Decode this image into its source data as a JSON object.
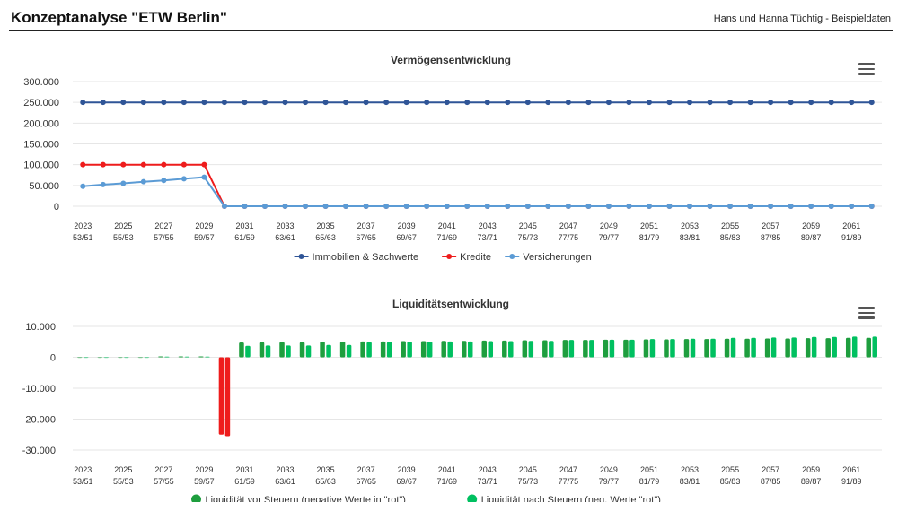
{
  "header": {
    "title": "Konzeptanalyse \"ETW Berlin\"",
    "subtitle": "Hans und Hanna Tüchtig - Beispieldaten"
  },
  "icons": {
    "menu": "hamburger-menu-icon"
  },
  "chart_data": [
    {
      "type": "line",
      "title": "Vermögensentwicklung",
      "x_tick_labels": [
        [
          "2023",
          "53/51"
        ],
        [
          "2025",
          "55/53"
        ],
        [
          "2027",
          "57/55"
        ],
        [
          "2029",
          "59/57"
        ],
        [
          "2031",
          "61/59"
        ],
        [
          "2033",
          "63/61"
        ],
        [
          "2035",
          "65/63"
        ],
        [
          "2037",
          "67/65"
        ],
        [
          "2039",
          "69/67"
        ],
        [
          "2041",
          "71/69"
        ],
        [
          "2043",
          "73/71"
        ],
        [
          "2045",
          "75/73"
        ],
        [
          "2047",
          "77/75"
        ],
        [
          "2049",
          "79/77"
        ],
        [
          "2051",
          "81/79"
        ],
        [
          "2053",
          "83/81"
        ],
        [
          "2055",
          "85/83"
        ],
        [
          "2057",
          "87/85"
        ],
        [
          "2059",
          "89/87"
        ],
        [
          "2061",
          "91/89"
        ]
      ],
      "x": [
        2023,
        2024,
        2025,
        2026,
        2027,
        2028,
        2029,
        2030,
        2031,
        2032,
        2033,
        2034,
        2035,
        2036,
        2037,
        2038,
        2039,
        2040,
        2041,
        2042,
        2043,
        2044,
        2045,
        2046,
        2047,
        2048,
        2049,
        2050,
        2051,
        2052,
        2053,
        2054,
        2055,
        2056,
        2057,
        2058,
        2059,
        2060,
        2061,
        2062
      ],
      "y_ticks": [
        "300.000",
        "250.000",
        "200.000",
        "150.000",
        "100.000",
        "50.000",
        "0"
      ],
      "ylim": [
        0,
        300000
      ],
      "grid": true,
      "legend_position": "bottom",
      "series": [
        {
          "name": "Immobilien & Sachwerte",
          "color": "#2f5597",
          "values": [
            250000,
            250000,
            250000,
            250000,
            250000,
            250000,
            250000,
            250000,
            250000,
            250000,
            250000,
            250000,
            250000,
            250000,
            250000,
            250000,
            250000,
            250000,
            250000,
            250000,
            250000,
            250000,
            250000,
            250000,
            250000,
            250000,
            250000,
            250000,
            250000,
            250000,
            250000,
            250000,
            250000,
            250000,
            250000,
            250000,
            250000,
            250000,
            250000,
            250000
          ]
        },
        {
          "name": "Kredite",
          "color": "#ee1c1c",
          "values": [
            100000,
            100000,
            100000,
            100000,
            100000,
            100000,
            100000,
            0,
            0,
            0,
            0,
            0,
            0,
            0,
            0,
            0,
            0,
            0,
            0,
            0,
            0,
            0,
            0,
            0,
            0,
            0,
            0,
            0,
            0,
            0,
            0,
            0,
            0,
            0,
            0,
            0,
            0,
            0,
            0,
            0
          ]
        },
        {
          "name": "Versicherungen",
          "color": "#5b9bd5",
          "values": [
            48000,
            52000,
            55000,
            59000,
            62000,
            66000,
            70000,
            0,
            0,
            0,
            0,
            0,
            0,
            0,
            0,
            0,
            0,
            0,
            0,
            0,
            0,
            0,
            0,
            0,
            0,
            0,
            0,
            0,
            0,
            0,
            0,
            0,
            0,
            0,
            0,
            0,
            0,
            0,
            0,
            0
          ]
        }
      ]
    },
    {
      "type": "bar",
      "title": "Liquiditätsentwicklung",
      "x_tick_labels": [
        [
          "2023",
          "53/51"
        ],
        [
          "2025",
          "55/53"
        ],
        [
          "2027",
          "57/55"
        ],
        [
          "2029",
          "59/57"
        ],
        [
          "2031",
          "61/59"
        ],
        [
          "2033",
          "63/61"
        ],
        [
          "2035",
          "65/63"
        ],
        [
          "2037",
          "67/65"
        ],
        [
          "2039",
          "69/67"
        ],
        [
          "2041",
          "71/69"
        ],
        [
          "2043",
          "73/71"
        ],
        [
          "2045",
          "75/73"
        ],
        [
          "2047",
          "77/75"
        ],
        [
          "2049",
          "79/77"
        ],
        [
          "2051",
          "81/79"
        ],
        [
          "2053",
          "83/81"
        ],
        [
          "2055",
          "85/83"
        ],
        [
          "2057",
          "87/85"
        ],
        [
          "2059",
          "89/87"
        ],
        [
          "2061",
          "91/89"
        ]
      ],
      "x": [
        2023,
        2024,
        2025,
        2026,
        2027,
        2028,
        2029,
        2030,
        2031,
        2032,
        2033,
        2034,
        2035,
        2036,
        2037,
        2038,
        2039,
        2040,
        2041,
        2042,
        2043,
        2044,
        2045,
        2046,
        2047,
        2048,
        2049,
        2050,
        2051,
        2052,
        2053,
        2054,
        2055,
        2056,
        2057,
        2058,
        2059,
        2060,
        2061,
        2062
      ],
      "y_ticks": [
        "10.000",
        "0",
        "-10.000",
        "-20.000",
        "-30.000"
      ],
      "ylim": [
        -30000,
        10000
      ],
      "grid": true,
      "legend_position": "bottom",
      "negative_color": "#ee1c1c",
      "series": [
        {
          "name": "Liquidität vor Steuern (negative Werte in \"rot\")",
          "color": "#1e9e3e",
          "values": [
            0,
            0,
            0,
            0,
            300,
            300,
            300,
            -25000,
            4800,
            4900,
            4900,
            4900,
            5000,
            5000,
            5100,
            5100,
            5200,
            5200,
            5300,
            5300,
            5400,
            5400,
            5500,
            5500,
            5600,
            5600,
            5700,
            5700,
            5800,
            5800,
            5900,
            5900,
            6000,
            6000,
            6100,
            6100,
            6200,
            6200,
            6300,
            6300
          ]
        },
        {
          "name": "Liquidität nach Steuern (neg. Werte \"rot\")",
          "color": "#00c060",
          "values": [
            0,
            0,
            0,
            0,
            200,
            200,
            200,
            -25500,
            3700,
            3800,
            3800,
            3800,
            4000,
            4000,
            4900,
            4900,
            5000,
            5000,
            5100,
            5100,
            5200,
            5200,
            5300,
            5300,
            5600,
            5600,
            5700,
            5700,
            5900,
            5900,
            6000,
            6000,
            6300,
            6300,
            6400,
            6400,
            6600,
            6600,
            6700,
            6700
          ]
        }
      ]
    }
  ]
}
